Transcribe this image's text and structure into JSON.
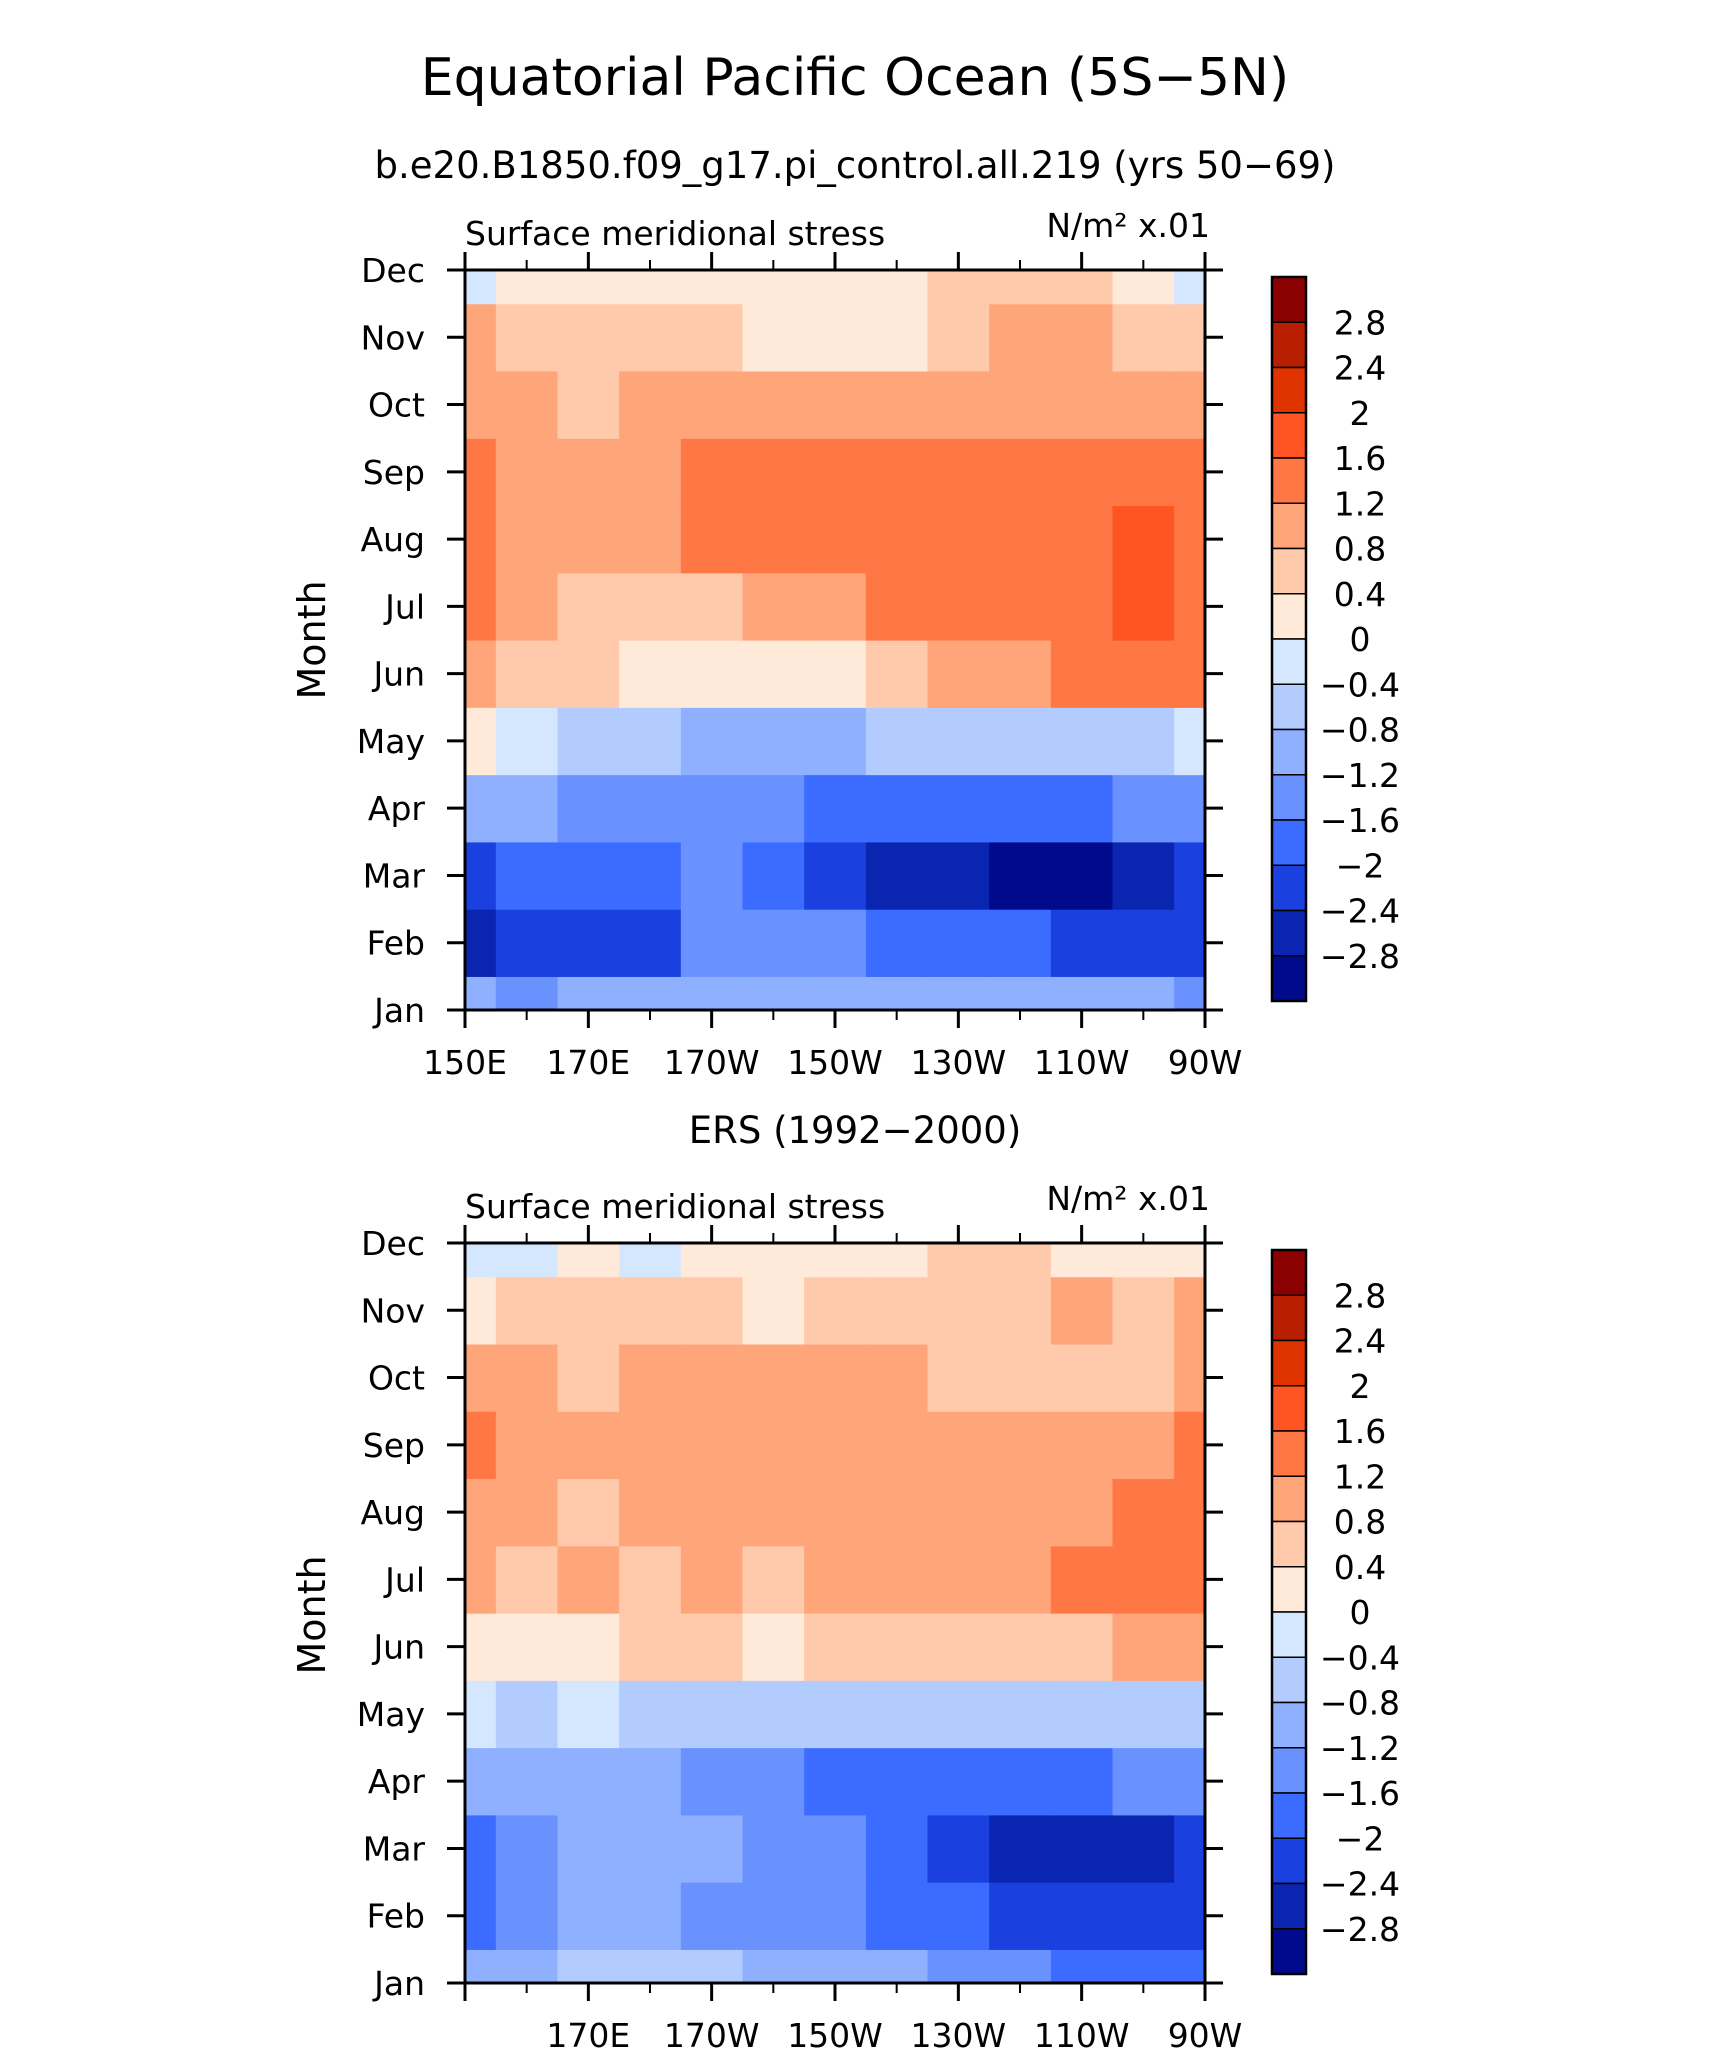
{
  "figure": {
    "title": "Equatorial Pacific Ocean (5S−5N)",
    "subtitle": "b.e20.B1850.f09_g17.pi_control.all.219 (yrs 50−69)"
  },
  "colorbar": {
    "labels": [
      "2.8",
      "2.4",
      "2",
      "1.6",
      "1.2",
      "0.8",
      "0.4",
      "0",
      "−0.4",
      "−0.8",
      "−1.2",
      "−1.6",
      "−2",
      "−2.4",
      "−2.8"
    ],
    "levels": [
      2.8,
      2.4,
      2.0,
      1.6,
      1.2,
      0.8,
      0.4,
      0.0,
      -0.4,
      -0.8,
      -1.2,
      -1.6,
      -2.0,
      -2.4,
      -2.8
    ],
    "colors": [
      "#8b0000",
      "#b71f00",
      "#df3400",
      "#ff5522",
      "#ff7744",
      "#ffa57a",
      "#ffc9ac",
      "#ffe9d8",
      "#d5e7ff",
      "#b3ccff",
      "#8fafff",
      "#6a92ff",
      "#3b6cff",
      "#1a40e0",
      "#0a25b0",
      "#000a8a"
    ]
  },
  "chart_data": [
    {
      "type": "heatmap",
      "title": "ERS (1992−2000)",
      "left_label": "Surface meridional stress",
      "right_label": "N/m² x.01",
      "ylabel": "Month",
      "x": [
        "150E",
        "160E",
        "170E",
        "180",
        "170W",
        "160W",
        "150W",
        "140W",
        "130W",
        "120W",
        "110W",
        "100W",
        "90W"
      ],
      "x_tick_labels": [
        "150E",
        "170E",
        "170W",
        "150W",
        "130W",
        "110W",
        "90W"
      ],
      "y": [
        "Jan",
        "Feb",
        "Mar",
        "Apr",
        "May",
        "Jun",
        "Jul",
        "Aug",
        "Sep",
        "Oct",
        "Nov",
        "Dec"
      ],
      "values": [
        [
          -1.2,
          -1.3,
          -1.1,
          -1.0,
          -1.0,
          -1.0,
          -0.9,
          -0.9,
          -0.9,
          -0.9,
          -1.0,
          -1.2,
          -1.3
        ],
        [
          -2.8,
          -2.2,
          -2.1,
          -2.2,
          -1.6,
          -1.6,
          -1.6,
          -1.7,
          -1.8,
          -2.0,
          -2.2,
          -2.2,
          -2.1
        ],
        [
          -2.4,
          -1.8,
          -1.8,
          -1.8,
          -1.6,
          -1.9,
          -2.4,
          -2.6,
          -2.7,
          -2.9,
          -2.9,
          -2.6,
          -2.3
        ],
        [
          -1.1,
          -1.2,
          -1.3,
          -1.3,
          -1.3,
          -1.5,
          -1.7,
          -1.8,
          -1.8,
          -1.7,
          -1.7,
          -1.5,
          -1.3
        ],
        [
          0.0,
          -0.2,
          -0.5,
          -0.8,
          -0.9,
          -0.9,
          -0.9,
          -0.8,
          -0.7,
          -0.7,
          -0.6,
          -0.5,
          -0.4
        ],
        [
          1.0,
          0.6,
          0.4,
          0.2,
          0.0,
          0.2,
          0.3,
          0.6,
          0.8,
          1.0,
          1.2,
          1.3,
          1.3
        ],
        [
          1.3,
          0.9,
          0.7,
          0.6,
          0.6,
          0.8,
          1.0,
          1.2,
          1.3,
          1.4,
          1.5,
          1.6,
          1.5
        ],
        [
          1.5,
          1.1,
          0.8,
          0.9,
          1.3,
          1.4,
          1.4,
          1.5,
          1.5,
          1.5,
          1.5,
          1.6,
          1.5
        ],
        [
          1.2,
          1.1,
          0.9,
          1.0,
          1.3,
          1.3,
          1.4,
          1.4,
          1.4,
          1.3,
          1.3,
          1.4,
          1.2
        ],
        [
          1.1,
          1.1,
          0.7,
          0.8,
          0.9,
          0.9,
          0.9,
          0.9,
          0.8,
          0.8,
          0.9,
          1.0,
          1.0
        ],
        [
          0.8,
          0.6,
          0.4,
          0.4,
          0.4,
          0.3,
          0.2,
          0.3,
          0.5,
          0.8,
          0.9,
          0.6,
          0.5
        ],
        [
          -0.1,
          0.2,
          0.2,
          0.1,
          0.0,
          0.0,
          0.1,
          0.3,
          0.6,
          0.7,
          0.5,
          0.2,
          -0.1
        ]
      ]
    },
    {
      "type": "heatmap",
      "title": "",
      "left_label": "Surface meridional stress",
      "right_label": "N/m² x.01",
      "ylabel": "Month",
      "x": [
        "150E",
        "160E",
        "170E",
        "180",
        "170W",
        "160W",
        "150W",
        "140W",
        "130W",
        "120W",
        "110W",
        "100W",
        "90W"
      ],
      "x_tick_labels": [
        "",
        "170E",
        "170W",
        "150W",
        "130W",
        "110W",
        "90W"
      ],
      "y": [
        "Jan",
        "Feb",
        "Mar",
        "Apr",
        "May",
        "Jun",
        "Jul",
        "Aug",
        "Sep",
        "Oct",
        "Nov",
        "Dec"
      ],
      "values": [
        [
          -1.0,
          -1.0,
          -0.8,
          -0.7,
          -0.8,
          -1.0,
          -1.1,
          -1.2,
          -1.3,
          -1.5,
          -1.7,
          -1.9,
          -2.0
        ],
        [
          -2.0,
          -1.3,
          -1.0,
          -1.1,
          -1.3,
          -1.5,
          -1.6,
          -1.8,
          -2.0,
          -2.2,
          -2.3,
          -2.4,
          -2.2
        ],
        [
          -2.0,
          -1.5,
          -0.9,
          -1.0,
          -1.2,
          -1.3,
          -1.5,
          -2.0,
          -2.2,
          -2.5,
          -2.6,
          -2.7,
          -2.2
        ],
        [
          -0.9,
          -1.1,
          -0.9,
          -1.1,
          -1.3,
          -1.5,
          -1.7,
          -1.8,
          -1.8,
          -1.9,
          -1.9,
          -1.6,
          -1.3
        ],
        [
          -0.4,
          -0.5,
          -0.4,
          -0.6,
          -0.7,
          -0.8,
          -0.8,
          -0.8,
          -0.6,
          -0.6,
          -0.5,
          -0.6,
          -0.5
        ],
        [
          0.3,
          0.3,
          0.2,
          0.4,
          0.4,
          0.2,
          0.5,
          0.7,
          0.6,
          0.6,
          0.7,
          0.8,
          0.8
        ],
        [
          0.8,
          0.7,
          0.8,
          0.7,
          0.8,
          0.6,
          0.9,
          1.0,
          0.9,
          0.8,
          1.2,
          1.3,
          1.3
        ],
        [
          0.9,
          0.9,
          0.7,
          1.0,
          0.9,
          0.9,
          1.1,
          1.1,
          1.0,
          0.9,
          1.0,
          1.2,
          1.3
        ],
        [
          1.3,
          0.9,
          0.8,
          1.0,
          1.1,
          0.9,
          1.0,
          1.0,
          1.0,
          0.8,
          0.9,
          1.0,
          1.2
        ],
        [
          0.9,
          1.0,
          0.7,
          0.8,
          1.0,
          0.9,
          0.8,
          0.8,
          0.7,
          0.6,
          0.6,
          0.7,
          1.1
        ],
        [
          0.3,
          0.4,
          0.5,
          0.5,
          0.4,
          0.3,
          0.5,
          0.6,
          0.7,
          0.6,
          1.1,
          0.7,
          0.9
        ],
        [
          -0.2,
          -0.1,
          0.1,
          -0.1,
          0.1,
          0.1,
          0.2,
          0.2,
          0.4,
          0.4,
          0.3,
          0.1,
          0.1
        ]
      ]
    }
  ]
}
